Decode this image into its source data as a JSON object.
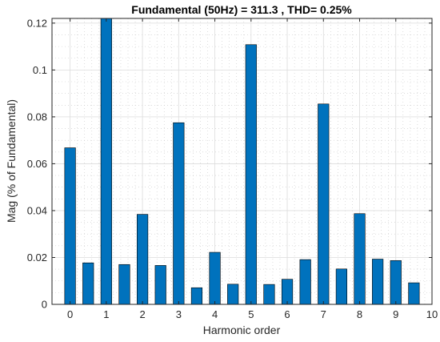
{
  "chart_data": {
    "type": "bar",
    "title": "Fundamental (50Hz) = 311.3 , THD= 0.25%",
    "xlabel": "Harmonic order",
    "ylabel": "Mag (% of Fundamental)",
    "x": [
      0,
      0.5,
      1,
      1.5,
      2,
      2.5,
      3,
      3.5,
      4,
      4.5,
      5,
      5.5,
      6,
      6.5,
      7,
      7.5,
      8,
      8.5,
      9,
      9.5
    ],
    "values": [
      0.0668,
      0.0177,
      0.122,
      0.017,
      0.0384,
      0.0166,
      0.0775,
      0.0071,
      0.0222,
      0.0086,
      0.1108,
      0.0085,
      0.0107,
      0.0191,
      0.0855,
      0.0151,
      0.0387,
      0.0193,
      0.0187,
      0.0092
    ],
    "xlim": [
      -0.5,
      10
    ],
    "ylim": [
      0,
      0.122
    ],
    "xticks": [
      "0",
      "1",
      "2",
      "3",
      "4",
      "5",
      "6",
      "7",
      "8",
      "9",
      "10"
    ],
    "yticks": [
      "0",
      "0.02",
      "0.04",
      "0.06",
      "0.08",
      "0.1",
      "0.12"
    ],
    "grid": true,
    "minor_grid": true,
    "bar_color": "#0072BD",
    "bar_edge_color": "#000000"
  }
}
